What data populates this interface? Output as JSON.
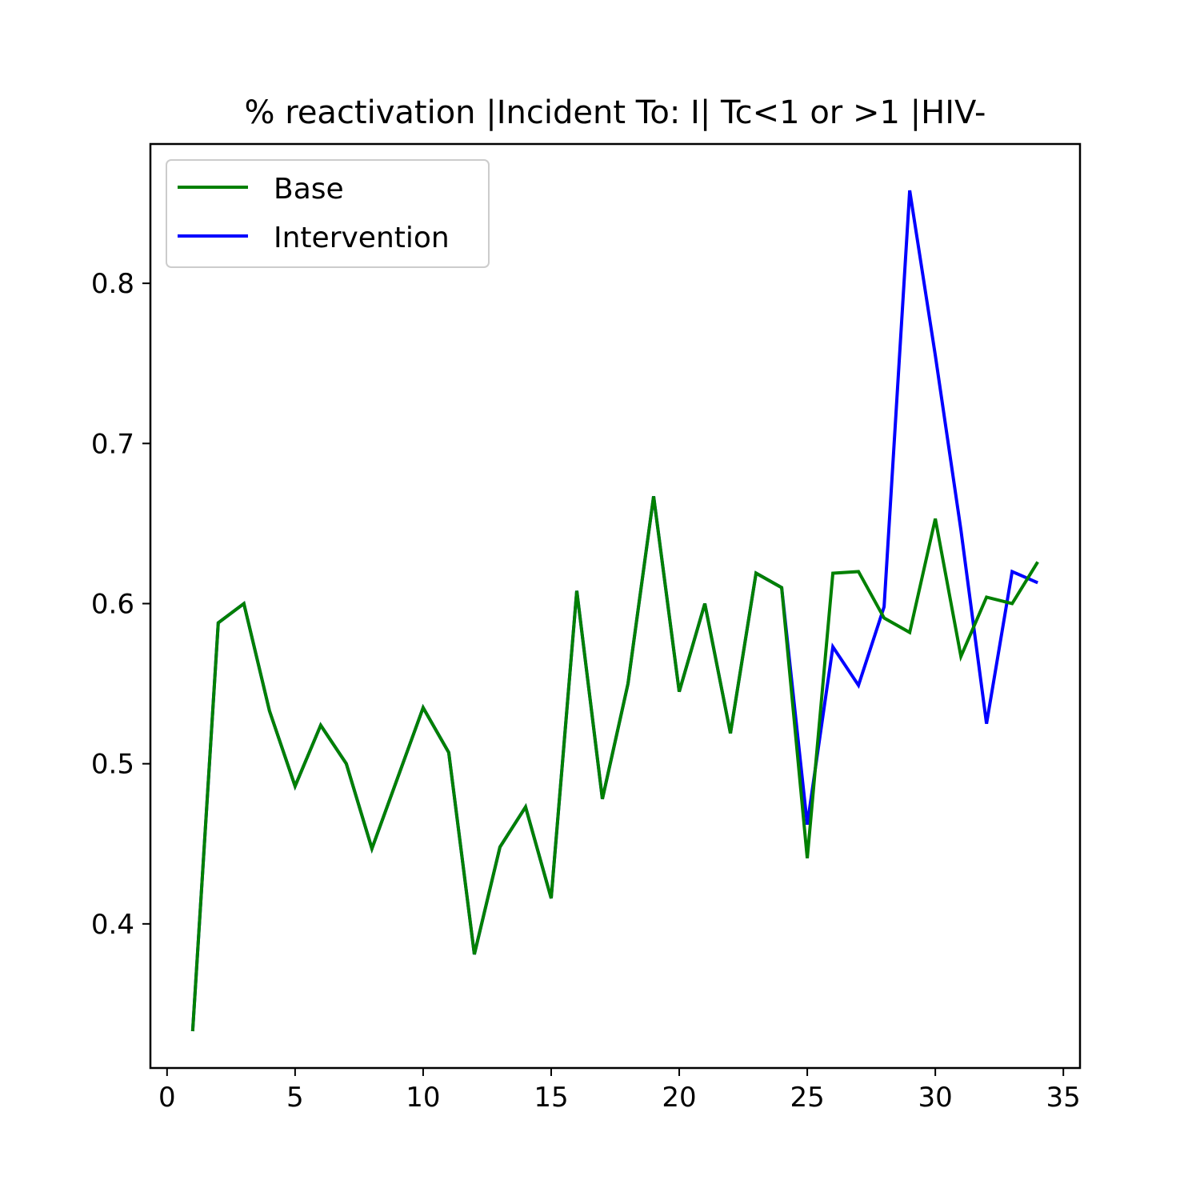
{
  "chart_data": {
    "type": "line",
    "title": "% reactivation |Incident To: I| Tc<1 or >1 |HIV-",
    "xlabel": "",
    "ylabel": "",
    "xlim": [
      -0.65,
      35.65
    ],
    "ylim": [
      0.31,
      0.887
    ],
    "xticks": [
      0,
      5,
      10,
      15,
      20,
      25,
      30,
      35
    ],
    "xtick_labels": [
      "0",
      "5",
      "10",
      "15",
      "20",
      "25",
      "30",
      "35"
    ],
    "yticks": [
      0.4,
      0.5,
      0.6,
      0.7,
      0.8
    ],
    "ytick_labels": [
      "0.4",
      "0.5",
      "0.6",
      "0.7",
      "0.8"
    ],
    "grid": false,
    "legend_position": "top-left",
    "x": [
      1,
      2,
      3,
      4,
      5,
      6,
      7,
      8,
      9,
      10,
      11,
      12,
      13,
      14,
      15,
      16,
      17,
      18,
      19,
      20,
      21,
      22,
      23,
      24,
      25,
      26,
      27,
      28,
      29,
      30,
      31,
      32,
      33,
      34
    ],
    "series": [
      {
        "name": "Base",
        "color": "#008000",
        "values": [
          0.333,
          0.588,
          0.6,
          0.533,
          0.486,
          0.524,
          0.5,
          0.447,
          0.491,
          0.535,
          0.507,
          0.381,
          0.448,
          0.473,
          0.416,
          0.608,
          0.478,
          0.55,
          0.667,
          0.545,
          0.6,
          0.519,
          0.619,
          0.61,
          0.441,
          0.619,
          0.62,
          0.591,
          0.582,
          0.653,
          0.567,
          0.604,
          0.6,
          0.626
        ]
      },
      {
        "name": "Intervention",
        "color": "#0000ff",
        "values": [
          0.333,
          0.588,
          0.6,
          0.533,
          0.486,
          0.524,
          0.5,
          0.447,
          0.491,
          0.535,
          0.507,
          0.381,
          0.448,
          0.473,
          0.416,
          0.608,
          0.478,
          0.55,
          0.667,
          0.545,
          0.6,
          0.519,
          0.619,
          0.61,
          0.462,
          0.573,
          0.549,
          0.598,
          0.858,
          0.755,
          0.646,
          0.525,
          0.62,
          0.613
        ]
      }
    ]
  }
}
